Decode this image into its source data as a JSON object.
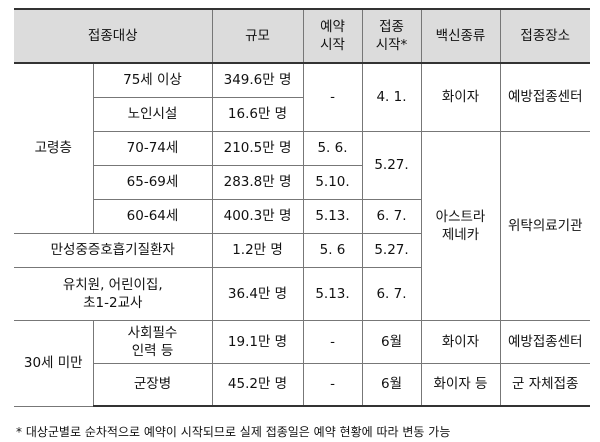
{
  "table": {
    "header": [
      "접종대상",
      "규모",
      "예약\n시작",
      "접종\n시작*",
      "백신종류",
      "접종장소"
    ],
    "rows": [
      [
        "고령층",
        "75세 이상",
        "349.6만 명",
        "-",
        "4. 1.",
        "화이자",
        "예방접종센터"
      ],
      [
        "노인시설",
        "16.6만 명"
      ],
      [
        "70-74세",
        "210.5만 명",
        "5. 6.",
        "5.27.",
        "아스트라\n제네카",
        "위탁의료기관"
      ],
      [
        "65-69세",
        "283.8만 명",
        "5.10."
      ],
      [
        "60-64세",
        "400.3만 명",
        "5.13.",
        "6. 7."
      ],
      [
        "만성중증호흡기질환자",
        "1.2만 명",
        "5. 6",
        "5.27."
      ],
      [
        "유치원, 어린이집,\n초1-2교사",
        "36.4만 명",
        "5.13.",
        "6. 7."
      ],
      [
        "30세 미만",
        "사회필수\n인력 등",
        "19.1만 명",
        "-",
        "6월",
        "화이자",
        "예방접종센터"
      ],
      [
        "군장병",
        "45.2만 명",
        "-",
        "6월",
        "화이자 등",
        "군 자체접종"
      ]
    ]
  },
  "footnote": "* 대상군별로 순차적으로 예약이 시작되므로 실제 접종일은 예약 현황에 따라 변동 가능"
}
